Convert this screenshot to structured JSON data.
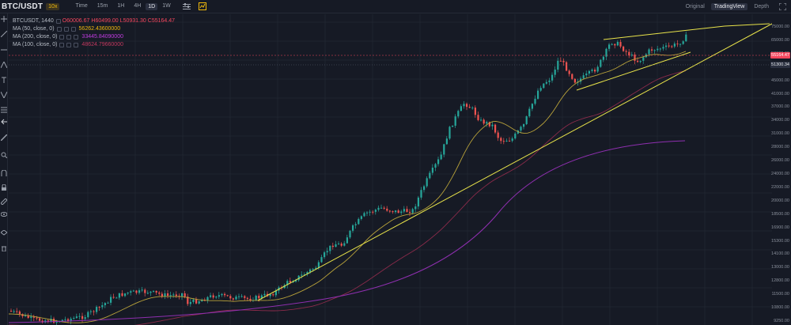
{
  "toolbar": {
    "symbol": "BTC/USDT",
    "leverage": "10x",
    "intervals": [
      "Time",
      "15m",
      "1H",
      "4H",
      "1D",
      "1W"
    ],
    "active_interval": "1D",
    "views": [
      "Original",
      "TradingView",
      "Depth"
    ],
    "active_view": "TradingView"
  },
  "legend": {
    "title": "BTCUSDT, 1440",
    "open": "O60006.67",
    "high": "H60499.00",
    "low": "L50931.30",
    "close": "C55164.47",
    "ma": [
      {
        "name": "MA (50, close, 0)",
        "value": "56262.43600000",
        "color": "#f0b90b"
      },
      {
        "name": "MA (200, close, 0)",
        "value": "33445.84090000",
        "color": "#c23ce0"
      },
      {
        "name": "MA (100, close, 0)",
        "value": "48624.79660000",
        "color": "#c2395f"
      }
    ]
  },
  "price_axis": {
    "ticks": [
      "75000.00",
      "65000.00",
      "58000.00",
      "51000.00",
      "45000.00",
      "41000.00",
      "37000.00",
      "34000.00",
      "31000.00",
      "28000.00",
      "26000.00",
      "24000.00",
      "22000.00",
      "20000.00",
      "18500.00",
      "16900.00",
      "15300.00",
      "14100.00",
      "13000.00",
      "12800.00",
      "11500.00",
      "10800.00",
      "9250.00"
    ],
    "last_price": "55164.47",
    "ma_tag": "51300.34"
  },
  "colors": {
    "up": "#26a69a",
    "down": "#ef5350",
    "trendline": "#e8e34a",
    "ma50": "#b8a23a",
    "ma100": "#8a2b4a",
    "ma200": "#8f2fb0"
  }
}
